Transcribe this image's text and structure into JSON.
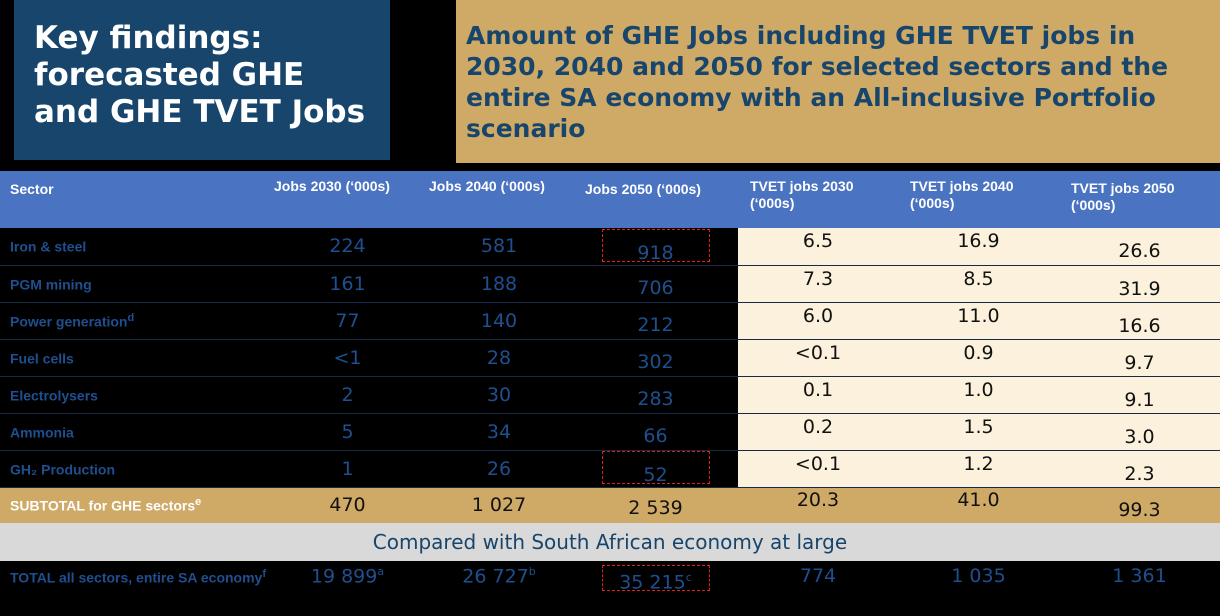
{
  "left_title": "Key findings: forecasted GHE and GHE TVET Jobs",
  "right_title": "Amount of GHE Jobs including GHE TVET jobs in 2030, 2040 and 2050 for selected sectors and the entire SA economy with an All-inclusive Portfolio scenario",
  "table": {
    "headers": [
      "Sector",
      "Jobs 2030 (‘000s)",
      "Jobs 2040 (‘000s)",
      "Jobs 2050 (‘000s)",
      "TVET jobs 2030 (‘000s)",
      "TVET jobs 2040 (‘000s)",
      "TVET jobs 2050 (‘000s)"
    ],
    "rows": [
      {
        "sector": "Iron & steel",
        "sup": "",
        "values": [
          "224",
          "581",
          "918",
          "6.5",
          "16.9",
          "26.6"
        ]
      },
      {
        "sector": "PGM mining",
        "sup": "",
        "values": [
          "161",
          "188",
          "706",
          "7.3",
          "8.5",
          "31.9"
        ]
      },
      {
        "sector": "Power generation",
        "sup": "d",
        "values": [
          "77",
          "140",
          "212",
          "6.0",
          "11.0",
          "16.6"
        ]
      },
      {
        "sector": "Fuel cells",
        "sup": "",
        "values": [
          "<1",
          "28",
          "302",
          "<0.1",
          "0.9",
          "9.7"
        ]
      },
      {
        "sector": "Electrolysers",
        "sup": "",
        "values": [
          "2",
          "30",
          "283",
          "0.1",
          "1.0",
          "9.1"
        ]
      },
      {
        "sector": "Ammonia",
        "sup": "",
        "values": [
          "5",
          "34",
          "66",
          "0.2",
          "1.5",
          "3.0"
        ]
      },
      {
        "sector": "GH₂ Production",
        "sup": "",
        "values": [
          "1",
          "26",
          "52",
          "<0.1",
          "1.2",
          "2.3"
        ]
      }
    ],
    "subtotal": {
      "label": "SUBTOTAL for GHE sectors",
      "sup": "e",
      "values": [
        "470",
        "1 027",
        "2 539",
        "20.3",
        "41.0",
        "99.3"
      ]
    },
    "compare_label": "Compared with South African economy at large",
    "total": {
      "label": "TOTAL all sectors, entire SA economy",
      "sup": "f",
      "values": [
        "19 899",
        "26 727",
        "35 215",
        "774",
        "1 035",
        "1 361"
      ],
      "value_sups": [
        "a",
        "b",
        "c",
        "",
        "",
        ""
      ]
    }
  }
}
